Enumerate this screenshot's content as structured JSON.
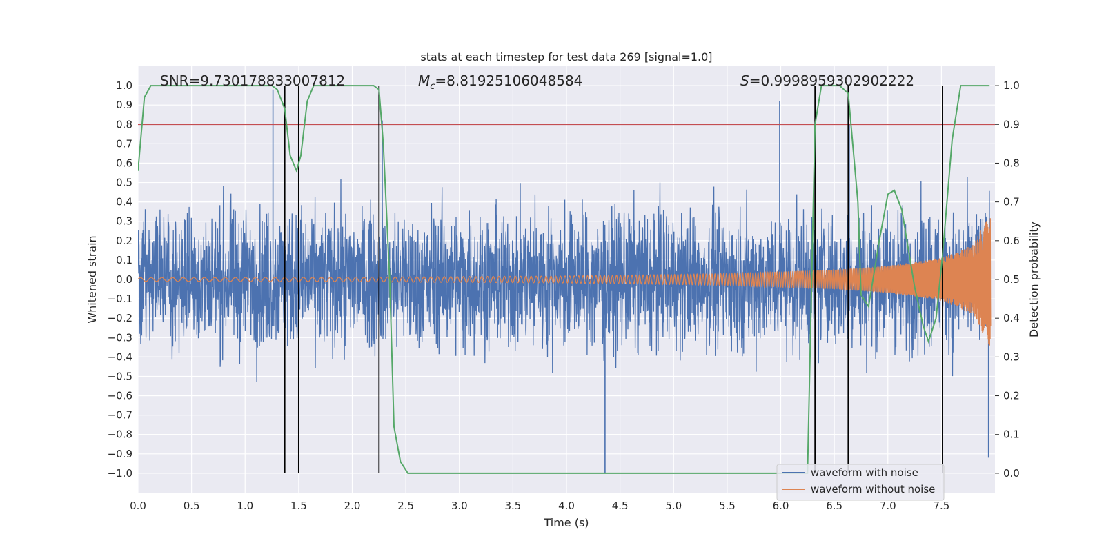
{
  "chart_data": {
    "type": "line",
    "title": "stats at each timestep for test data 269 [signal=1.0]",
    "xlabel": "Time (s)",
    "ylabel_left": "Whitened strain",
    "ylabel_right": "Detection probability",
    "xlim": [
      0.0,
      8.0
    ],
    "ylim_left": [
      -1.1,
      1.1
    ],
    "ylim_right": [
      -0.05,
      1.05
    ],
    "grid": true,
    "legend_position": "lower-right",
    "x_ticks": [
      "0.0",
      "0.5",
      "1.0",
      "1.5",
      "2.0",
      "2.5",
      "3.0",
      "3.5",
      "4.0",
      "4.5",
      "5.0",
      "5.5",
      "6.0",
      "6.5",
      "7.0",
      "7.5"
    ],
    "y_ticks_left": [
      "1.0",
      "0.9",
      "0.8",
      "0.7",
      "0.6",
      "0.5",
      "0.4",
      "0.3",
      "0.2",
      "0.1",
      "0.0",
      "−0.1",
      "−0.2",
      "−0.3",
      "−0.4",
      "−0.5",
      "−0.6",
      "−0.7",
      "−0.8",
      "−0.9",
      "−1.0"
    ],
    "y_ticks_right": [
      "1.0",
      "0.9",
      "0.8",
      "0.7",
      "0.6",
      "0.5",
      "0.4",
      "0.3",
      "0.2",
      "0.1",
      "0.0"
    ],
    "annotations": {
      "snr": "SNR=9.730178833007812",
      "mc_symbol": "M",
      "mc_subscript": "c",
      "mc_value": "=8.81925106048584",
      "s_symbol": "S",
      "s_value": "=0.9998959302902222"
    },
    "threshold_line": {
      "y_right": 0.9,
      "color": "#c44e52"
    },
    "event_lines_x": [
      1.37,
      1.5,
      2.25,
      6.32,
      6.63,
      7.51
    ],
    "series": [
      {
        "name": "waveform with noise",
        "color": "#4c72b0",
        "description_only": false,
        "noise_amplitude_typical": 0.25,
        "peak_spikes": [
          [
            1.26,
            0.98
          ],
          [
            1.5,
            0.9
          ],
          [
            2.28,
            0.82
          ],
          [
            4.36,
            -1.0
          ],
          [
            5.99,
            0.92
          ],
          [
            6.64,
            0.8
          ],
          [
            7.94,
            -0.92
          ]
        ]
      },
      {
        "name": "waveform without noise",
        "color": "#dd8452",
        "amplitude_points": [
          [
            0.0,
            0.01
          ],
          [
            2.0,
            0.012
          ],
          [
            4.0,
            0.018
          ],
          [
            5.5,
            0.03
          ],
          [
            6.5,
            0.05
          ],
          [
            7.0,
            0.07
          ],
          [
            7.5,
            0.11
          ],
          [
            7.8,
            0.18
          ],
          [
            7.95,
            0.35
          ]
        ]
      },
      {
        "name": "detection probability",
        "color": "#55a868",
        "axis": "right",
        "points": [
          [
            0.0,
            0.78
          ],
          [
            0.06,
            0.97
          ],
          [
            0.12,
            1.0
          ],
          [
            1.25,
            1.0
          ],
          [
            1.3,
            0.99
          ],
          [
            1.37,
            0.94
          ],
          [
            1.42,
            0.82
          ],
          [
            1.48,
            0.78
          ],
          [
            1.52,
            0.82
          ],
          [
            1.58,
            0.96
          ],
          [
            1.64,
            1.0
          ],
          [
            2.2,
            1.0
          ],
          [
            2.25,
            0.99
          ],
          [
            2.29,
            0.85
          ],
          [
            2.35,
            0.5
          ],
          [
            2.39,
            0.12
          ],
          [
            2.45,
            0.03
          ],
          [
            2.52,
            0.0
          ],
          [
            3.05,
            0.0
          ],
          [
            6.25,
            0.0
          ],
          [
            6.32,
            0.9
          ],
          [
            6.38,
            1.0
          ],
          [
            6.55,
            1.0
          ],
          [
            6.63,
            0.98
          ],
          [
            6.72,
            0.7
          ],
          [
            6.75,
            0.46
          ],
          [
            6.82,
            0.43
          ],
          [
            6.92,
            0.6
          ],
          [
            7.0,
            0.72
          ],
          [
            7.06,
            0.73
          ],
          [
            7.13,
            0.68
          ],
          [
            7.25,
            0.48
          ],
          [
            7.33,
            0.38
          ],
          [
            7.38,
            0.34
          ],
          [
            7.45,
            0.4
          ],
          [
            7.51,
            0.56
          ],
          [
            7.6,
            0.86
          ],
          [
            7.68,
            1.0
          ],
          [
            7.95,
            1.0
          ]
        ]
      }
    ],
    "legend_entries": [
      "waveform with noise",
      "waveform without noise"
    ]
  }
}
